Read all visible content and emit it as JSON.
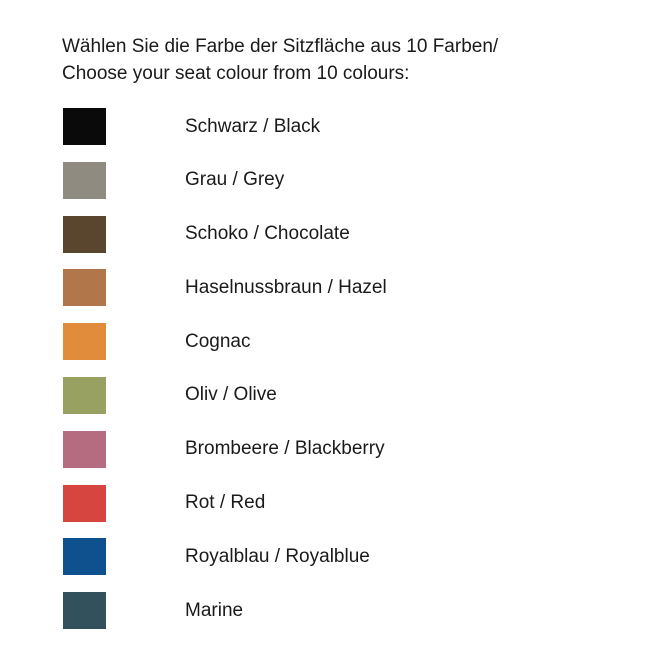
{
  "title": {
    "line1": "Wählen Sie die Farbe der Sitzfläche aus 10 Farben/",
    "line2": "Choose your seat colour from 10 colours:"
  },
  "colors": [
    {
      "name": "schwarz-black",
      "label": "Schwarz / Black",
      "hex": "#0a0a0a"
    },
    {
      "name": "grau-grey",
      "label": "Grau / Grey",
      "hex": "#8f8b81"
    },
    {
      "name": "schoko-chocolate",
      "label": "Schoko / Chocolate",
      "hex": "#5a452f"
    },
    {
      "name": "haselnussbraun-hazel",
      "label": "Haselnussbraun / Hazel",
      "hex": "#b1764a"
    },
    {
      "name": "cognac",
      "label": "Cognac",
      "hex": "#e08c3a"
    },
    {
      "name": "oliv-olive",
      "label": "Oliv / Olive",
      "hex": "#98a162"
    },
    {
      "name": "brombeere-blackberry",
      "label": "Brombeere / Blackberry",
      "hex": "#b56b80"
    },
    {
      "name": "rot-red",
      "label": "Rot / Red",
      "hex": "#d64540"
    },
    {
      "name": "royalblau-royalblue",
      "label": "Royalblau / Royalblue",
      "hex": "#0f518f"
    },
    {
      "name": "marine",
      "label": "Marine",
      "hex": "#33515d"
    }
  ]
}
